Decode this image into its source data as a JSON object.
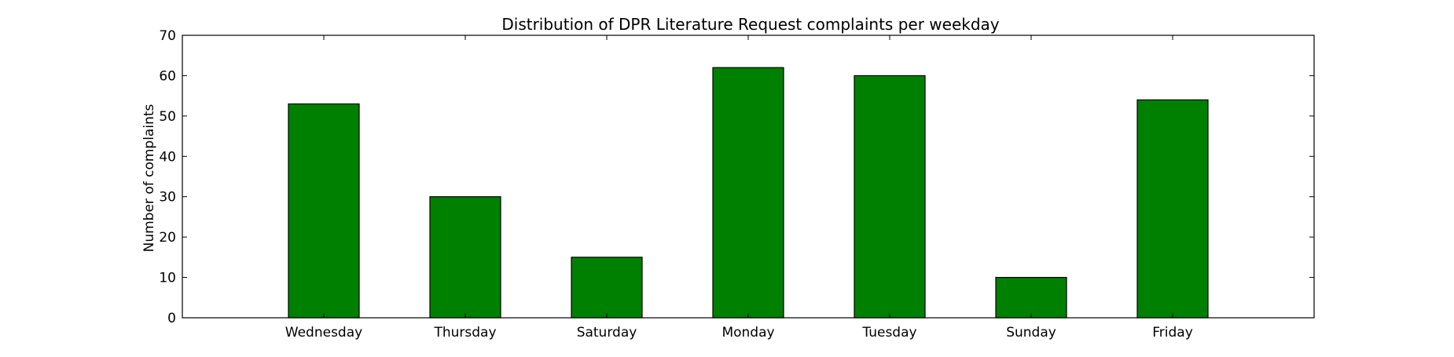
{
  "chart_data": {
    "type": "bar",
    "title": "Distribution of  DPR Literature Request complaints per weekday",
    "xlabel": "",
    "ylabel": "Number of complaints",
    "categories": [
      "Wednesday",
      "Thursday",
      "Saturday",
      "Monday",
      "Tuesday",
      "Sunday",
      "Friday"
    ],
    "values": [
      53,
      30,
      15,
      62,
      60,
      10,
      54
    ],
    "ylim": [
      0,
      70
    ],
    "yticks": [
      0,
      10,
      20,
      30,
      40,
      50,
      60,
      70
    ],
    "grid": false,
    "legend": "none",
    "colors": {
      "bar": "#008000",
      "bar_edge": "#000000",
      "axes": "#000000",
      "background": "#ffffff"
    }
  }
}
